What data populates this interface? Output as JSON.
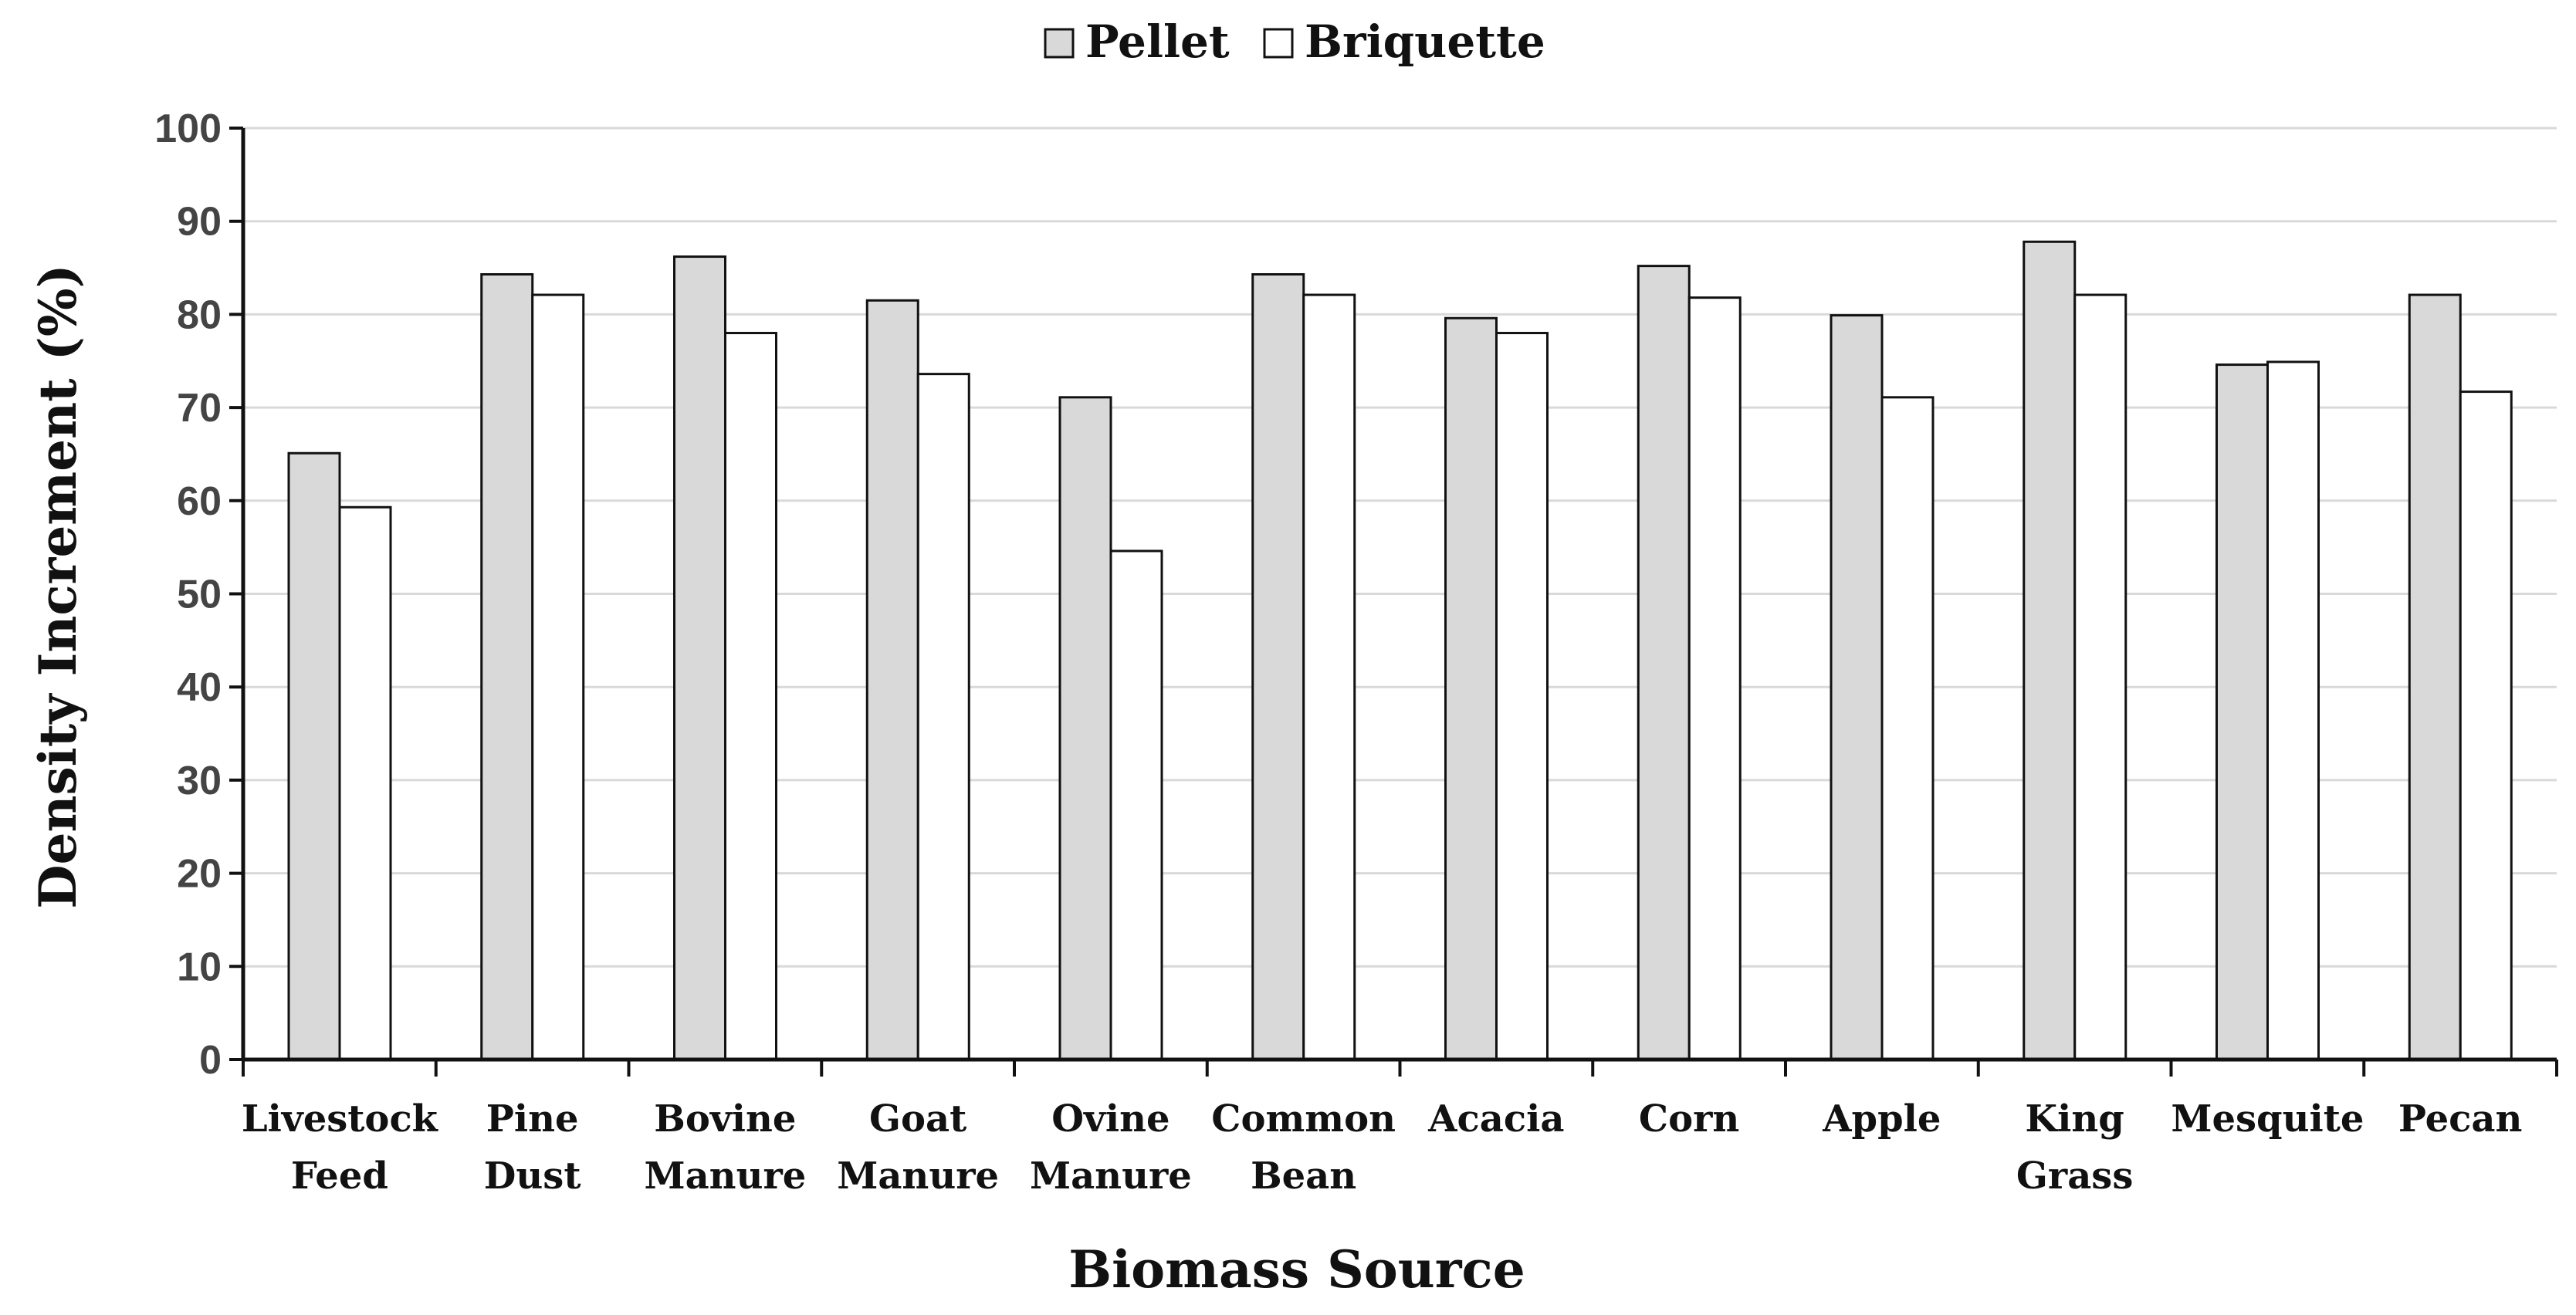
{
  "chart_data": {
    "type": "bar",
    "title": "",
    "xlabel": "Biomass Source",
    "ylabel": "Density Increment (%)",
    "ylim": [
      0,
      100
    ],
    "yticks": [
      0,
      10,
      20,
      30,
      40,
      50,
      60,
      70,
      80,
      90,
      100
    ],
    "grid": true,
    "legend_position": "top-center",
    "categories": [
      [
        "Livestock",
        "Feed"
      ],
      [
        "Pine",
        "Dust"
      ],
      [
        "Bovine",
        "Manure"
      ],
      [
        "Goat",
        "Manure"
      ],
      [
        "Ovine",
        "Manure"
      ],
      [
        "Common",
        "Bean"
      ],
      [
        "Acacia"
      ],
      [
        "Corn"
      ],
      [
        "Apple"
      ],
      [
        "King",
        "Grass"
      ],
      [
        "Mesquite"
      ],
      [
        "Pecan"
      ]
    ],
    "series": [
      {
        "name": "Pellet",
        "color": "#d9d9d9",
        "values": [
          65.1,
          84.3,
          86.2,
          81.5,
          71.1,
          84.3,
          79.6,
          85.2,
          79.9,
          87.8,
          74.6,
          82.1
        ]
      },
      {
        "name": "Briquette",
        "color": "#ffffff",
        "values": [
          59.3,
          82.1,
          78.0,
          73.6,
          54.6,
          82.1,
          78.0,
          81.8,
          71.1,
          82.1,
          74.9,
          71.7
        ]
      }
    ]
  }
}
